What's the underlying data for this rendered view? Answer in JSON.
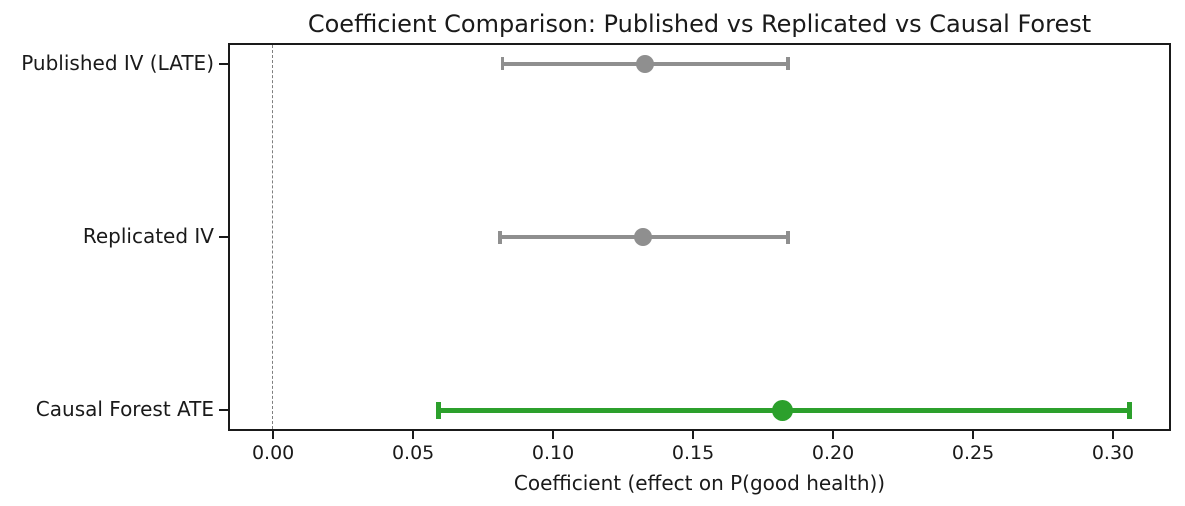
{
  "chart_data": {
    "type": "scatter",
    "subtype": "forest-plot-errorbars",
    "title": "Coefficient Comparison: Published vs Replicated vs Causal Forest",
    "xlabel": "Coefficient (effect on P(good health))",
    "ylabel": "",
    "categories": [
      "Published IV (LATE)",
      "Replicated IV",
      "Causal Forest ATE"
    ],
    "series": [
      {
        "name": "Published IV (LATE)",
        "estimate": 0.133,
        "ci_low": 0.082,
        "ci_high": 0.184,
        "color": "#8f8f8f",
        "line_width": 3.5,
        "cap_height": 13,
        "marker_size": 18
      },
      {
        "name": "Replicated IV",
        "estimate": 0.132,
        "ci_low": 0.081,
        "ci_high": 0.184,
        "color": "#8f8f8f",
        "line_width": 3.5,
        "cap_height": 13,
        "marker_size": 18
      },
      {
        "name": "Causal Forest ATE",
        "estimate": 0.182,
        "ci_low": 0.059,
        "ci_high": 0.306,
        "color": "#2ca02c",
        "line_width": 5,
        "cap_height": 17,
        "marker_size": 21
      }
    ],
    "xticks": [
      0.0,
      0.05,
      0.1,
      0.15,
      0.2,
      0.25,
      0.3
    ],
    "xtick_labels": [
      "0.00",
      "0.05",
      "0.10",
      "0.15",
      "0.20",
      "0.25",
      "0.30"
    ],
    "xlim": [
      -0.0154,
      0.32
    ],
    "reference_line_x": 0.0,
    "grid": false,
    "legend": "none",
    "colors": {
      "gray_series": "#8f8f8f",
      "green_series": "#2ca02c",
      "reference_line": "#7f7f7f",
      "spine": "#1a1a1a",
      "background": "#ffffff"
    }
  }
}
